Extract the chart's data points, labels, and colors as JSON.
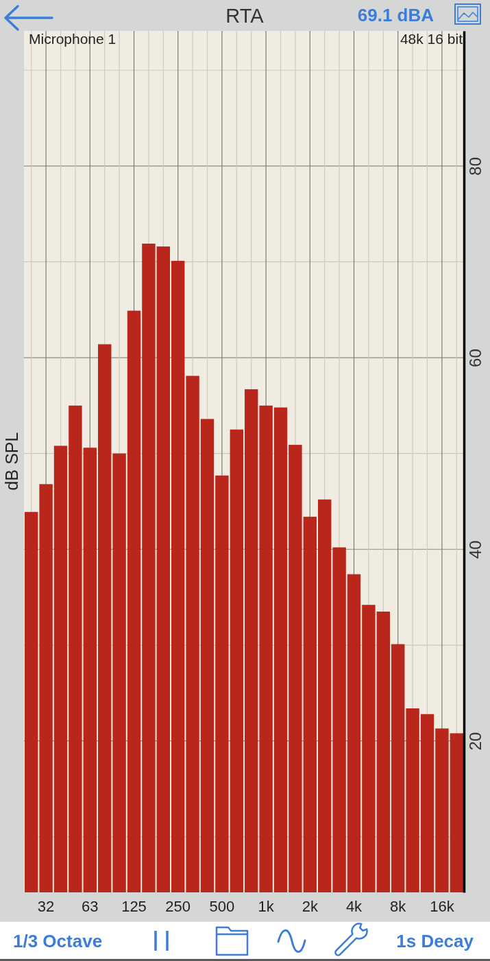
{
  "chart_data": {
    "type": "bar",
    "title": "RTA",
    "ylabel": "dB SPL",
    "categories": [
      null,
      "32",
      null,
      null,
      "63",
      null,
      null,
      "125",
      null,
      null,
      "250",
      null,
      null,
      "500",
      null,
      null,
      "1k",
      null,
      null,
      "2k",
      null,
      null,
      "4k",
      null,
      null,
      "8k",
      null,
      null,
      "16k",
      null
    ],
    "values": [
      43.9,
      46.8,
      50.8,
      55.0,
      50.6,
      61.4,
      50.0,
      64.9,
      71.9,
      71.6,
      70.1,
      58.1,
      53.6,
      47.7,
      52.5,
      56.7,
      55.0,
      54.8,
      50.9,
      43.4,
      45.2,
      40.2,
      37.4,
      34.2,
      33.5,
      30.1,
      23.4,
      22.8,
      21.3,
      20.8
    ],
    "color": "#b9261c",
    "ylim": [
      4.2,
      94.1
    ],
    "yticks": [
      {
        "value": 10,
        "label": null
      },
      20,
      {
        "value": 30,
        "label": null
      },
      40,
      {
        "value": 50,
        "label": null
      },
      60,
      {
        "value": 70,
        "label": null
      },
      80,
      {
        "value": 90,
        "label": null
      }
    ],
    "grid": true,
    "annotations": [
      "69.1 dBA",
      "Microphone 1",
      "48k 16 bit",
      "1/3 Octave",
      "1s Decay"
    ]
  }
}
